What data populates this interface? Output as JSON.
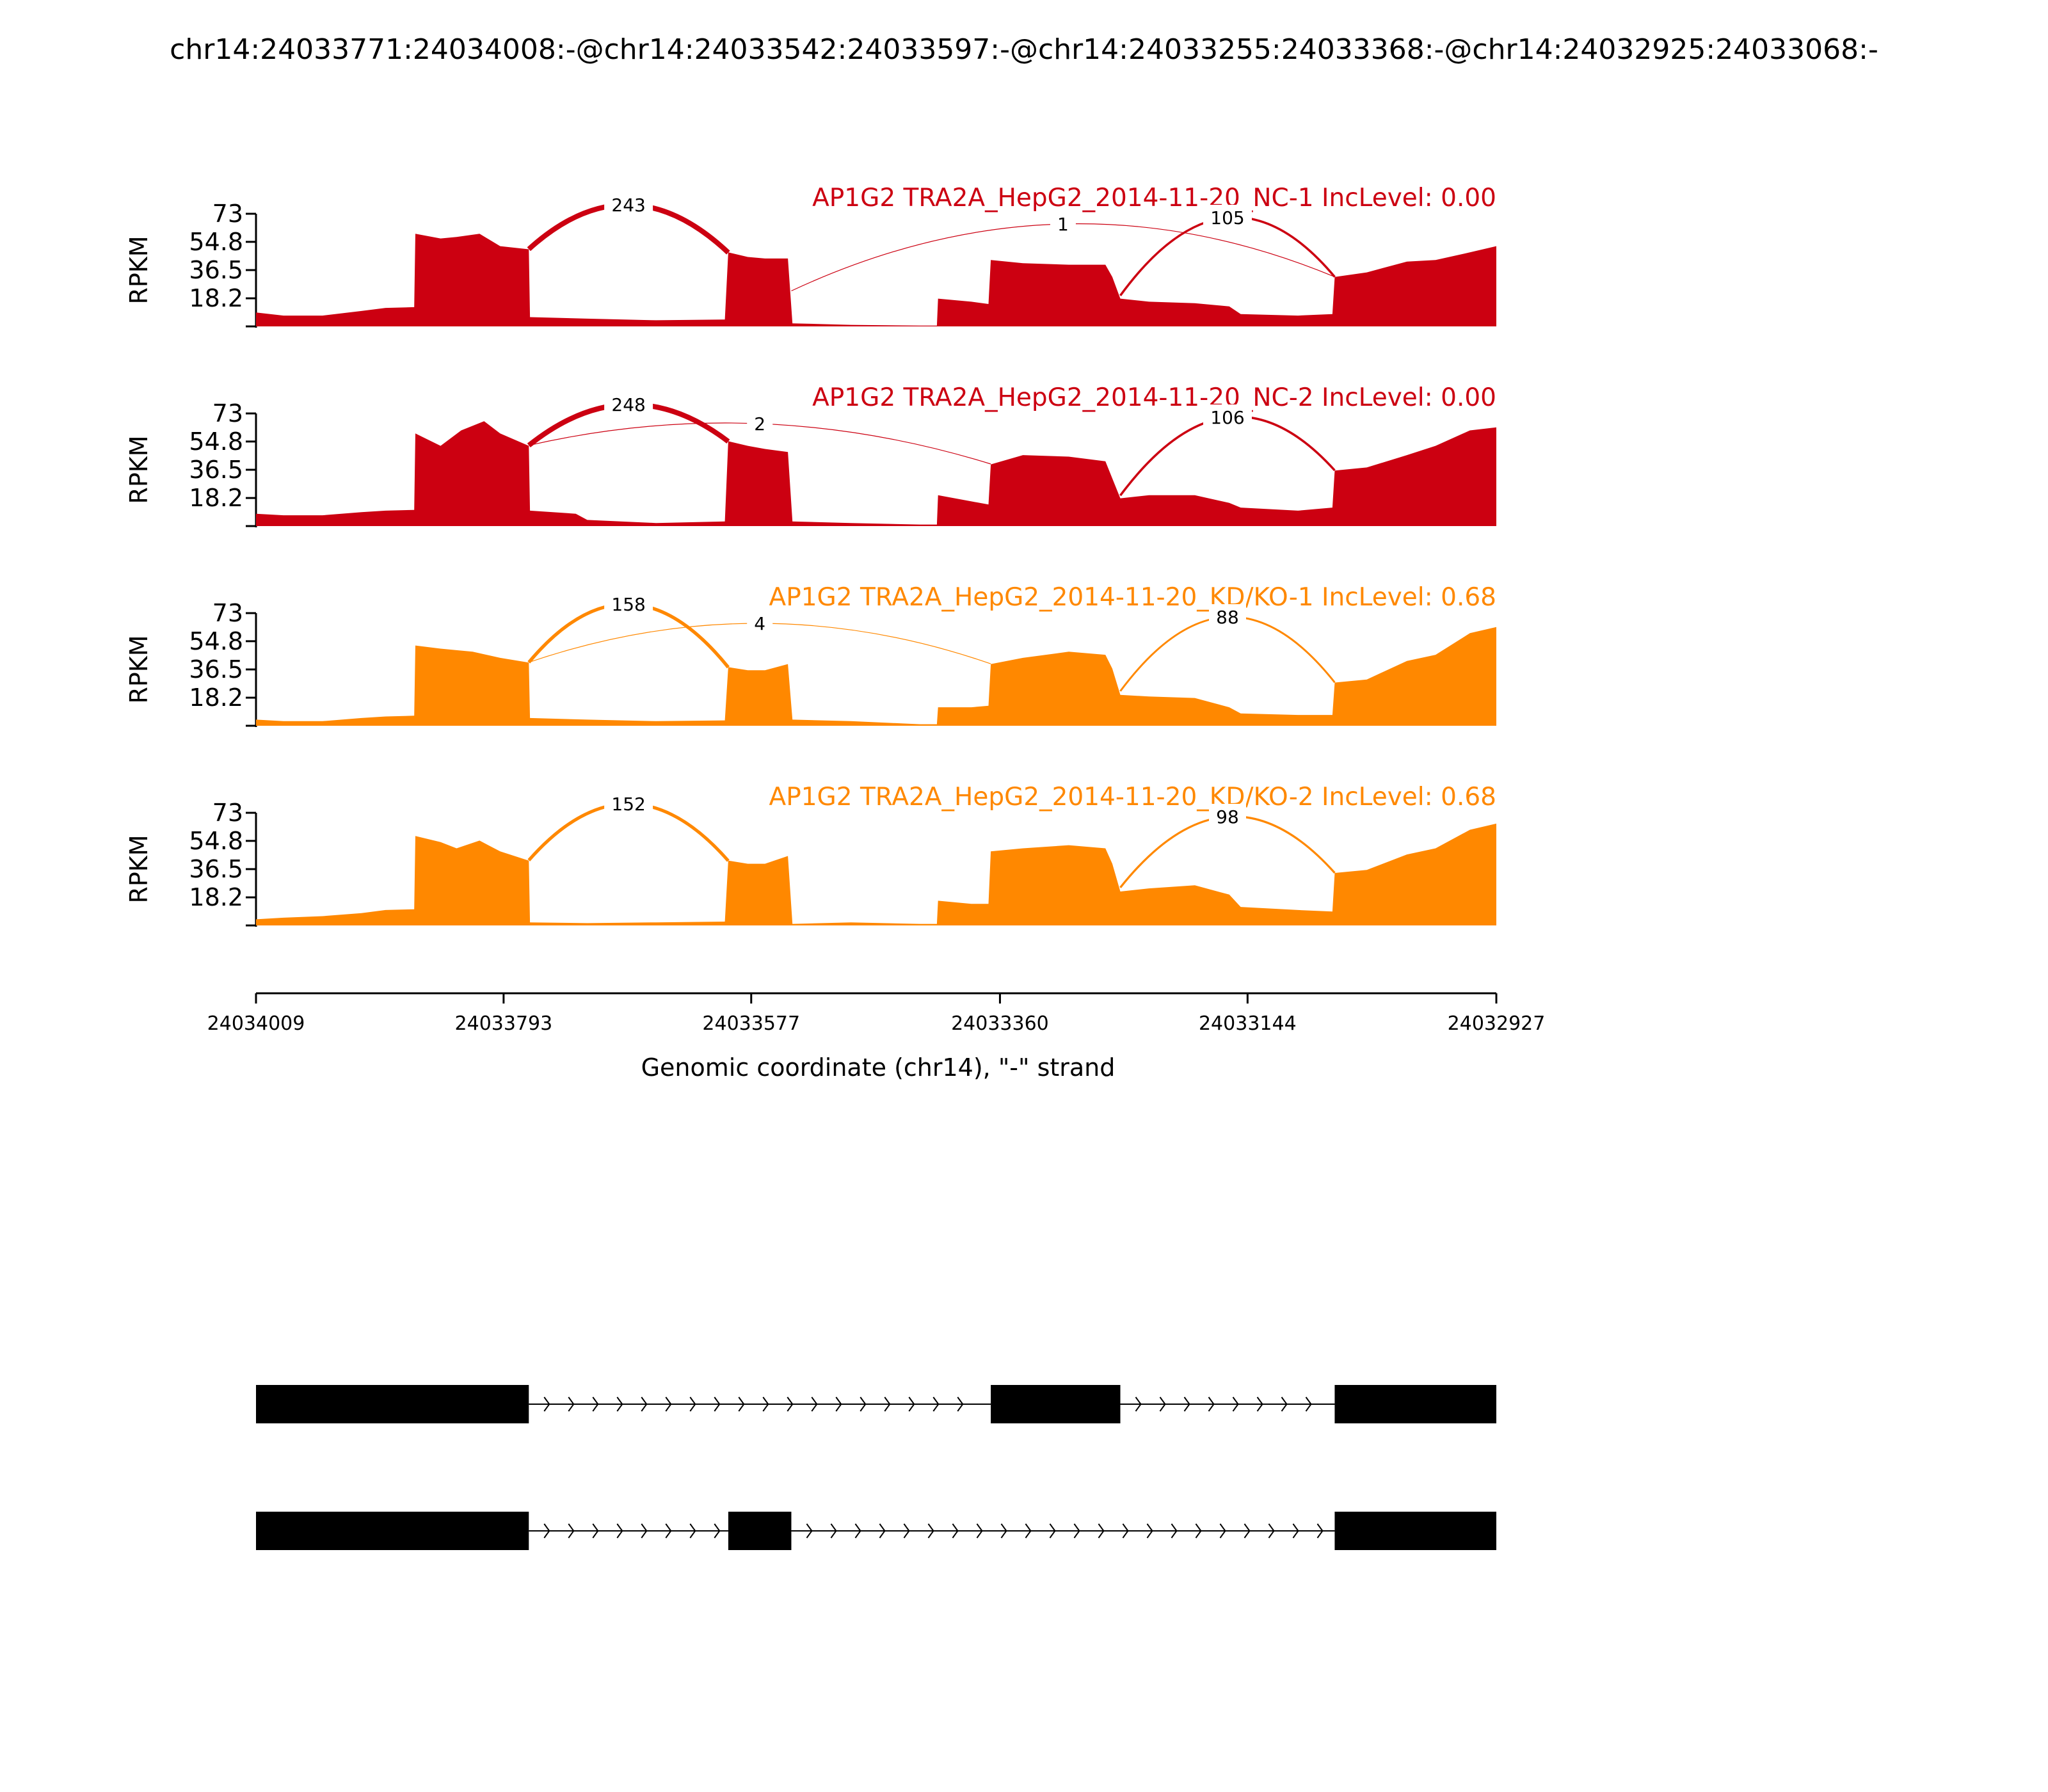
{
  "chart_data": {
    "type": "area",
    "title": "chr14:24033771:24034008:-@chr14:24033542:24033597:-@chr14:24033255:24033368:-@chr14:24032925:24033068:-",
    "xlabel": "Genomic coordinate (chr14), \"-\" strand",
    "ylabel": "RPKM",
    "x_range": [
      24034009,
      24032927
    ],
    "x_ticks": [
      "24034009",
      "24033793",
      "24033577",
      "24033360",
      "24033144",
      "24032927"
    ],
    "y_range": [
      0,
      73
    ],
    "y_ticks": [
      "73",
      "54.8",
      "36.5",
      "18.2"
    ],
    "colors": {
      "NC": "#cc0011",
      "KD": "#ff8800",
      "transcript": "#000000"
    },
    "panels": [
      {
        "name": "AP1G2 TRA2A_HepG2_2014-11-20_NC-1 IncLevel: 0.00",
        "group": "NC",
        "profile": [
          [
            24034009,
            9
          ],
          [
            24033985,
            7
          ],
          [
            24033951,
            7
          ],
          [
            24033917,
            10
          ],
          [
            24033896,
            12
          ],
          [
            24033871,
            12.5
          ],
          [
            24033870,
            60
          ],
          [
            24033848,
            57
          ],
          [
            24033834,
            58
          ],
          [
            24033814,
            60
          ],
          [
            24033796,
            52
          ],
          [
            24033771,
            50
          ],
          [
            24033770,
            6
          ],
          [
            24033720,
            5
          ],
          [
            24033660,
            4
          ],
          [
            24033600,
            4.5
          ],
          [
            24033597,
            48
          ],
          [
            24033580,
            45
          ],
          [
            24033565,
            44
          ],
          [
            24033545,
            44
          ],
          [
            24033541,
            2
          ],
          [
            24033490,
            1
          ],
          [
            24033430,
            0.5
          ],
          [
            24033415,
            0.5
          ],
          [
            24033414,
            18
          ],
          [
            24033385,
            16
          ],
          [
            24033370,
            14.5
          ],
          [
            24033368,
            43
          ],
          [
            24033340,
            41
          ],
          [
            24033300,
            40
          ],
          [
            24033268,
            40
          ],
          [
            24033262,
            32
          ],
          [
            24033255,
            18
          ],
          [
            24033230,
            16
          ],
          [
            24033190,
            15
          ],
          [
            24033160,
            13
          ],
          [
            24033150,
            8
          ],
          [
            24033100,
            7
          ],
          [
            24033070,
            8
          ],
          [
            24033068,
            32
          ],
          [
            24033040,
            35
          ],
          [
            24033005,
            42
          ],
          [
            24032980,
            43
          ],
          [
            24032950,
            48
          ],
          [
            24032927,
            52
          ]
        ],
        "junctions": [
          {
            "from": 24033771,
            "to": 24033597,
            "count": 243
          },
          {
            "from": 24033542,
            "to": 24033068,
            "count": 1
          },
          {
            "from": 24033255,
            "to": 24033068,
            "count": 105
          }
        ]
      },
      {
        "name": "AP1G2 TRA2A_HepG2_2014-11-20_NC-2 IncLevel: 0.00",
        "group": "NC",
        "profile": [
          [
            24034009,
            8
          ],
          [
            24033985,
            7
          ],
          [
            24033951,
            7
          ],
          [
            24033917,
            9
          ],
          [
            24033896,
            10
          ],
          [
            24033871,
            10.5
          ],
          [
            24033870,
            60
          ],
          [
            24033848,
            52
          ],
          [
            24033830,
            62
          ],
          [
            24033810,
            68
          ],
          [
            24033796,
            60
          ],
          [
            24033771,
            52
          ],
          [
            24033770,
            10
          ],
          [
            24033730,
            8
          ],
          [
            24033720,
            4
          ],
          [
            24033660,
            2
          ],
          [
            24033600,
            3
          ],
          [
            24033597,
            55
          ],
          [
            24033580,
            52
          ],
          [
            24033565,
            50
          ],
          [
            24033545,
            48
          ],
          [
            24033541,
            3
          ],
          [
            24033490,
            2
          ],
          [
            24033430,
            1
          ],
          [
            24033415,
            1
          ],
          [
            24033414,
            20
          ],
          [
            24033385,
            16
          ],
          [
            24033370,
            14
          ],
          [
            24033368,
            40
          ],
          [
            24033340,
            46
          ],
          [
            24033300,
            45
          ],
          [
            24033268,
            42
          ],
          [
            24033255,
            18
          ],
          [
            24033230,
            20
          ],
          [
            24033190,
            20
          ],
          [
            24033160,
            15
          ],
          [
            24033150,
            12
          ],
          [
            24033100,
            10
          ],
          [
            24033070,
            12
          ],
          [
            24033068,
            36
          ],
          [
            24033040,
            38
          ],
          [
            24033005,
            46
          ],
          [
            24032980,
            52
          ],
          [
            24032950,
            62
          ],
          [
            24032927,
            64
          ]
        ],
        "junctions": [
          {
            "from": 24033771,
            "to": 24033597,
            "count": 248
          },
          {
            "from": 24033771,
            "to": 24033368,
            "count": 2
          },
          {
            "from": 24033255,
            "to": 24033068,
            "count": 106
          }
        ]
      },
      {
        "name": "AP1G2 TRA2A_HepG2_2014-11-20_KD/KO-1 IncLevel: 0.68",
        "group": "KD",
        "profile": [
          [
            24034009,
            4
          ],
          [
            24033985,
            3
          ],
          [
            24033951,
            3
          ],
          [
            24033917,
            5
          ],
          [
            24033896,
            6
          ],
          [
            24033871,
            6.5
          ],
          [
            24033870,
            52
          ],
          [
            24033848,
            50
          ],
          [
            24033820,
            48
          ],
          [
            24033796,
            44
          ],
          [
            24033771,
            41
          ],
          [
            24033770,
            5
          ],
          [
            24033720,
            4
          ],
          [
            24033660,
            3
          ],
          [
            24033600,
            3.5
          ],
          [
            24033597,
            38
          ],
          [
            24033580,
            36
          ],
          [
            24033565,
            36
          ],
          [
            24033545,
            40
          ],
          [
            24033541,
            4
          ],
          [
            24033490,
            3
          ],
          [
            24033430,
            1
          ],
          [
            24033415,
            1
          ],
          [
            24033414,
            12
          ],
          [
            24033385,
            12
          ],
          [
            24033370,
            13
          ],
          [
            24033368,
            40
          ],
          [
            24033340,
            44
          ],
          [
            24033300,
            48
          ],
          [
            24033268,
            46
          ],
          [
            24033262,
            37
          ],
          [
            24033255,
            20
          ],
          [
            24033230,
            19
          ],
          [
            24033190,
            18
          ],
          [
            24033160,
            12
          ],
          [
            24033150,
            8
          ],
          [
            24033100,
            7
          ],
          [
            24033070,
            7
          ],
          [
            24033068,
            28
          ],
          [
            24033040,
            30
          ],
          [
            24033005,
            42
          ],
          [
            24032980,
            46
          ],
          [
            24032950,
            60
          ],
          [
            24032927,
            64
          ]
        ],
        "junctions": [
          {
            "from": 24033771,
            "to": 24033597,
            "count": 158
          },
          {
            "from": 24033771,
            "to": 24033368,
            "count": 4
          },
          {
            "from": 24033255,
            "to": 24033068,
            "count": 88
          }
        ]
      },
      {
        "name": "AP1G2 TRA2A_HepG2_2014-11-20_KD/KO-2 IncLevel: 0.68",
        "group": "KD",
        "profile": [
          [
            24034009,
            4
          ],
          [
            24033985,
            5
          ],
          [
            24033951,
            6
          ],
          [
            24033917,
            8
          ],
          [
            24033896,
            10
          ],
          [
            24033871,
            10.5
          ],
          [
            24033870,
            58
          ],
          [
            24033848,
            54
          ],
          [
            24033834,
            50
          ],
          [
            24033814,
            55
          ],
          [
            24033796,
            48
          ],
          [
            24033771,
            42
          ],
          [
            24033770,
            2
          ],
          [
            24033720,
            1.5
          ],
          [
            24033660,
            2
          ],
          [
            24033600,
            2.5
          ],
          [
            24033597,
            42
          ],
          [
            24033580,
            40
          ],
          [
            24033565,
            40
          ],
          [
            24033545,
            45
          ],
          [
            24033541,
            1
          ],
          [
            24033490,
            2
          ],
          [
            24033430,
            1
          ],
          [
            24033415,
            1
          ],
          [
            24033414,
            16
          ],
          [
            24033385,
            14
          ],
          [
            24033370,
            14
          ],
          [
            24033368,
            48
          ],
          [
            24033340,
            50
          ],
          [
            24033300,
            52
          ],
          [
            24033268,
            50
          ],
          [
            24033262,
            40
          ],
          [
            24033255,
            22
          ],
          [
            24033230,
            24
          ],
          [
            24033190,
            26
          ],
          [
            24033160,
            20
          ],
          [
            24033150,
            12
          ],
          [
            24033100,
            10
          ],
          [
            24033070,
            9
          ],
          [
            24033068,
            34
          ],
          [
            24033040,
            36
          ],
          [
            24033005,
            46
          ],
          [
            24032980,
            50
          ],
          [
            24032950,
            62
          ],
          [
            24032927,
            66
          ]
        ],
        "junctions": [
          {
            "from": 24033771,
            "to": 24033597,
            "count": 152
          },
          {
            "from": 24033255,
            "to": 24033068,
            "count": 98
          }
        ]
      }
    ],
    "transcripts": [
      {
        "exons": [
          [
            24034009,
            24033771
          ],
          [
            24033368,
            24033255
          ],
          [
            24033068,
            24032927
          ]
        ]
      },
      {
        "exons": [
          [
            24034009,
            24033771
          ],
          [
            24033597,
            24033542
          ],
          [
            24033068,
            24032927
          ]
        ]
      }
    ]
  }
}
